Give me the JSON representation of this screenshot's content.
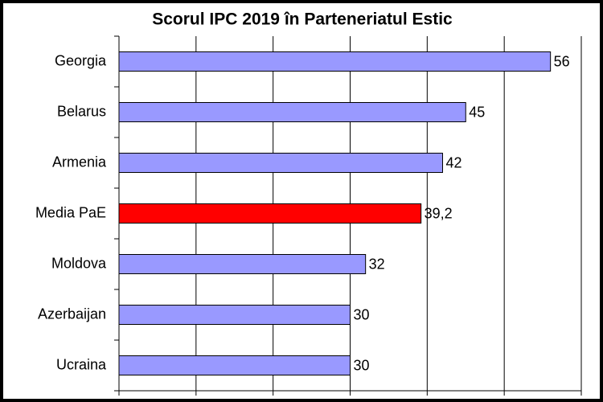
{
  "chart_data": {
    "type": "hbar",
    "title": "Scorul IPC 2019 în Parteneriatul Estic",
    "categories": [
      "Georgia",
      "Belarus",
      "Armenia",
      "Media PaE",
      "Moldova",
      "Azerbaijan",
      "Ucraina"
    ],
    "values": [
      56,
      45,
      42,
      39.2,
      32,
      30,
      30
    ],
    "value_labels": [
      "56",
      "45",
      "42",
      "39,2",
      "32",
      "30",
      "30"
    ],
    "colors": [
      "#9999ff",
      "#9999ff",
      "#9999ff",
      "#ff0000",
      "#9999ff",
      "#9999ff",
      "#9999ff"
    ],
    "xlim": [
      0,
      60
    ],
    "xticks": [
      0,
      10,
      20,
      30,
      40,
      50,
      60
    ],
    "grid": true
  }
}
